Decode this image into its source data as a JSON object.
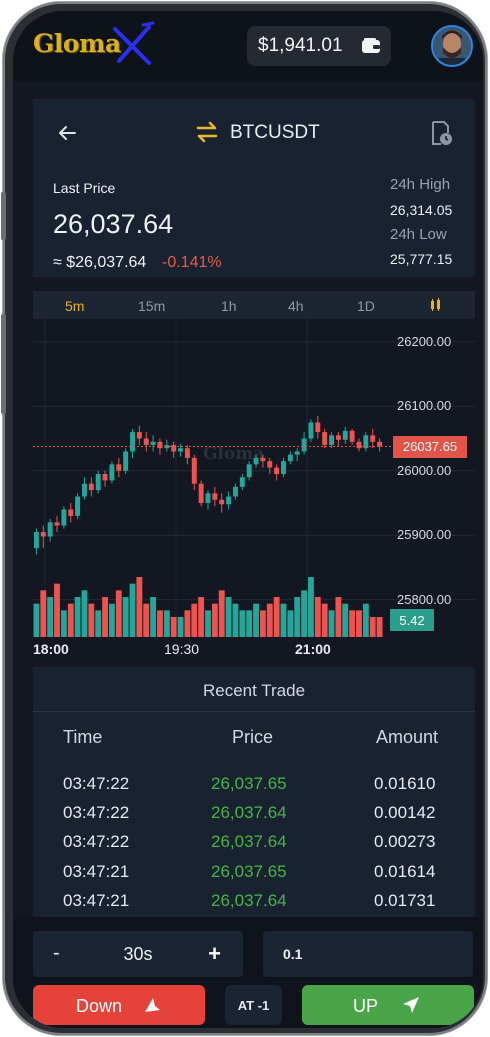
{
  "header": {
    "logo_text": "Gloma",
    "balance": "$1,941.01",
    "icons": {
      "wallet": "wallet-icon",
      "avatar": "user-avatar"
    }
  },
  "ticker": {
    "pair": "BTCUSDT",
    "last_price_label": "Last Price",
    "last_price": "26,037.64",
    "usd_price": "≈ $26,037.64",
    "change": "-0.141%",
    "high_label": "24h High",
    "high": "26,314.05",
    "low_label": "24h Low",
    "low": "25,777.15",
    "icons": {
      "back": "arrow-left-icon",
      "swap": "swap-icon",
      "history": "history-icon"
    }
  },
  "timeframes": {
    "items": [
      "5m",
      "15m",
      "1h",
      "4h",
      "1D"
    ],
    "active": "5m",
    "indicator_icon": "indicator-icon"
  },
  "chart_data": {
    "type": "candlestick",
    "y_ticks": [
      "26200.00",
      "26100.00",
      "26000.00",
      "25900.00",
      "25800.00"
    ],
    "ylim": [
      25770,
      26220
    ],
    "x_ticks": [
      "18:00",
      "19:30",
      "21:00"
    ],
    "current_price_label": "26037.65",
    "current_volume_label": "5.42",
    "watermark": "Gloma",
    "colors": {
      "up": "#26a69a",
      "down": "#ef5350"
    },
    "candles": [
      [
        25880,
        25905,
        25870,
        25910
      ],
      [
        25905,
        25898,
        25880,
        25915
      ],
      [
        25898,
        25920,
        25890,
        25925
      ],
      [
        25920,
        25915,
        25905,
        25930
      ],
      [
        25915,
        25940,
        25910,
        25945
      ],
      [
        25940,
        25930,
        25920,
        25950
      ],
      [
        25930,
        25960,
        25925,
        25965
      ],
      [
        25960,
        25980,
        25955,
        25990
      ],
      [
        25980,
        25970,
        25960,
        25990
      ],
      [
        25970,
        25995,
        25965,
        26000
      ],
      [
        25995,
        25985,
        25975,
        26000
      ],
      [
        25985,
        26010,
        25980,
        26015
      ],
      [
        26010,
        26000,
        25990,
        26020
      ],
      [
        26000,
        26030,
        25995,
        26035
      ],
      [
        26030,
        26060,
        26020,
        26065
      ],
      [
        26060,
        26050,
        26040,
        26070
      ],
      [
        26050,
        26040,
        26030,
        26060
      ],
      [
        26040,
        26045,
        26030,
        26055
      ],
      [
        26045,
        26035,
        26025,
        26050
      ],
      [
        26035,
        26040,
        26030,
        26048
      ],
      [
        26040,
        26030,
        26020,
        26045
      ],
      [
        26030,
        26035,
        26022,
        26042
      ],
      [
        26035,
        26020,
        26010,
        26040
      ],
      [
        26020,
        25980,
        25970,
        26025
      ],
      [
        25980,
        25950,
        25945,
        25985
      ],
      [
        25950,
        25965,
        25940,
        25970
      ],
      [
        25965,
        25955,
        25945,
        25975
      ],
      [
        25955,
        25948,
        25935,
        25965
      ],
      [
        25948,
        25960,
        25940,
        25968
      ],
      [
        25960,
        25975,
        25955,
        25980
      ],
      [
        25975,
        25990,
        25970,
        25995
      ],
      [
        25990,
        26010,
        25985,
        26015
      ],
      [
        26010,
        26020,
        26005,
        26025
      ],
      [
        26020,
        26015,
        26005,
        26025
      ],
      [
        26015,
        26005,
        25995,
        26020
      ],
      [
        26005,
        25995,
        25985,
        26010
      ],
      [
        25995,
        26015,
        25990,
        26020
      ],
      [
        26015,
        26025,
        26010,
        26030
      ],
      [
        26025,
        26030,
        26015,
        26035
      ],
      [
        26030,
        26050,
        26025,
        26060
      ],
      [
        26050,
        26075,
        26045,
        26080
      ],
      [
        26075,
        26060,
        26050,
        26085
      ],
      [
        26060,
        26040,
        26035,
        26065
      ],
      [
        26040,
        26055,
        26035,
        26060
      ],
      [
        26055,
        26048,
        26038,
        26060
      ],
      [
        26048,
        26062,
        26042,
        26068
      ],
      [
        26062,
        26045,
        26040,
        26065
      ],
      [
        26045,
        26035,
        26030,
        26050
      ],
      [
        26035,
        26055,
        26030,
        26060
      ],
      [
        26055,
        26045,
        26035,
        26065
      ],
      [
        26045,
        26038,
        26030,
        26050
      ]
    ],
    "volumes": [
      5,
      7,
      6,
      8,
      4,
      5,
      6,
      7,
      5,
      4,
      6,
      5,
      7,
      6,
      8,
      9,
      5,
      6,
      4,
      4,
      3,
      3,
      4,
      5,
      6,
      4,
      5,
      7,
      6,
      5,
      4,
      4,
      5,
      4,
      5,
      6,
      5,
      4,
      6,
      7,
      9,
      6,
      5,
      4,
      6,
      5,
      4,
      4,
      5,
      3,
      3
    ]
  },
  "recent_trade": {
    "title": "Recent Trade",
    "columns": [
      "Time",
      "Price",
      "Amount"
    ],
    "rows": [
      {
        "time": "03:47:22",
        "price": "26,037.65",
        "amount": "0.01610"
      },
      {
        "time": "03:47:22",
        "price": "26,037.64",
        "amount": "0.00142"
      },
      {
        "time": "03:47:22",
        "price": "26,037.64",
        "amount": "0.00273"
      },
      {
        "time": "03:47:21",
        "price": "26,037.65",
        "amount": "0.01614"
      },
      {
        "time": "03:47:21",
        "price": "26,037.64",
        "amount": "0.01731"
      }
    ]
  },
  "controls": {
    "minus": "-",
    "duration": "30s",
    "plus": "+",
    "amount_value": "0.1",
    "down_label": "Down",
    "at_label": "AT -1",
    "up_label": "UP"
  }
}
